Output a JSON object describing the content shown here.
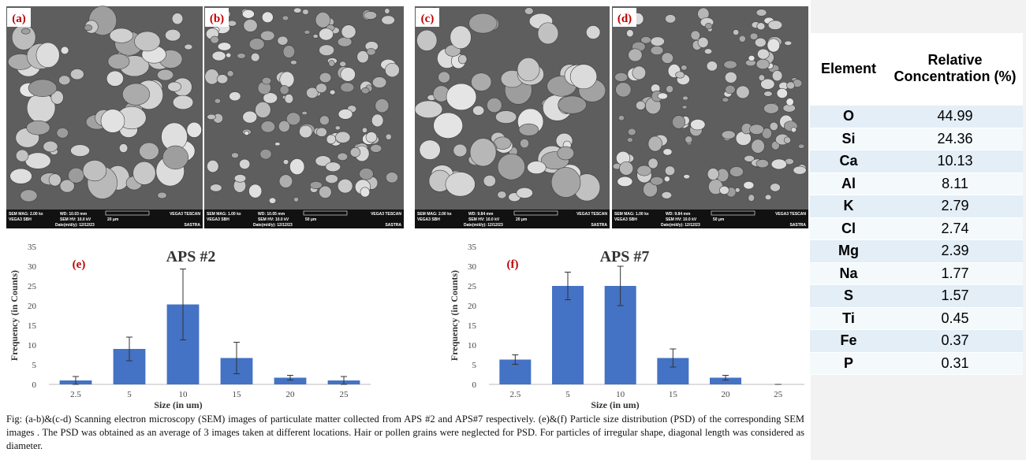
{
  "panels": [
    {
      "label": "(a)",
      "mag": "SEM MAG: 2.00 kx",
      "wd": "WD: 10.03 mm",
      "brand": "VEGA3 TESCAN",
      "model": "VEGA3 SBH",
      "hv": "SEM HV: 10.0 kV",
      "scale": "20 µm",
      "date": "Date(m/d/y): 12/12/23",
      "org": "SASTRA"
    },
    {
      "label": "(b)",
      "mag": "SEM MAG: 1.00 kx",
      "wd": "WD: 10.05 mm",
      "brand": "VEGA3 TESCAN",
      "model": "VEGA3 SBH",
      "hv": "SEM HV: 10.0 kV",
      "scale": "50 µm",
      "date": "Date(m/d/y): 12/12/23",
      "org": "SASTRA"
    },
    {
      "label": "(c)",
      "mag": "SEM MAG: 2.00 kx",
      "wd": "WD: 9.84 mm",
      "brand": "VEGA3 TESCAN",
      "model": "VEGA3 SBH",
      "hv": "SEM HV: 10.0 kV",
      "scale": "20 µm",
      "date": "Date(m/d/y): 12/12/23",
      "org": "SASTRA"
    },
    {
      "label": "(d)",
      "mag": "SEM MAG: 1.00 kx",
      "wd": "WD: 9.84 mm",
      "brand": "VEGA3 TESCAN",
      "model": "VEGA3 SBH",
      "hv": "SEM HV: 10.0 kV",
      "scale": "50 µm",
      "date": "Date(m/d/y): 12/12/23",
      "org": "SASTRA"
    }
  ],
  "chart_data": [
    {
      "type": "bar",
      "panel_label": "(e)",
      "title": "APS #2",
      "x_label": "Size (in um)",
      "y_label": "Frequency (in Counts)",
      "categories": [
        "2.5",
        "5",
        "10",
        "15",
        "20",
        "25"
      ],
      "values": [
        1,
        9,
        20.3,
        6.7,
        1.7,
        1
      ],
      "errors": [
        1,
        3,
        9,
        4,
        0.6,
        1
      ],
      "color": "#4472c4",
      "ylim": [
        0,
        35
      ],
      "yticks": [
        0,
        5,
        10,
        15,
        20,
        25,
        30,
        35
      ]
    },
    {
      "type": "bar",
      "panel_label": "(f)",
      "title": "APS #7",
      "x_label": "Size (in um)",
      "y_label": "Frequency (in Counts)",
      "categories": [
        "2.5",
        "5",
        "10",
        "15",
        "20",
        "25"
      ],
      "values": [
        6.3,
        25,
        25,
        6.7,
        1.7,
        0
      ],
      "errors": [
        1.2,
        3.5,
        5,
        2.3,
        0.6,
        0
      ],
      "color": "#4472c4",
      "ylim": [
        0,
        35
      ],
      "yticks": [
        0,
        5,
        10,
        15,
        20,
        25,
        30,
        35
      ]
    }
  ],
  "table": {
    "header": [
      "Element",
      "Relative Concentration (%)"
    ],
    "rows": [
      [
        "O",
        "44.99"
      ],
      [
        "Si",
        "24.36"
      ],
      [
        "Ca",
        "10.13"
      ],
      [
        "Al",
        "8.11"
      ],
      [
        "K",
        "2.79"
      ],
      [
        "Cl",
        "2.74"
      ],
      [
        "Mg",
        "2.39"
      ],
      [
        "Na",
        "1.77"
      ],
      [
        "S",
        "1.57"
      ],
      [
        "Ti",
        "0.45"
      ],
      [
        "Fe",
        "0.37"
      ],
      [
        "P",
        "0.31"
      ]
    ]
  },
  "caption": "Fig: (a-b)&(c-d) Scanning electron microscopy (SEM) images of particulate matter collected from APS #2 and APS#7 respectively. (e)&(f) Particle size distribution (PSD) of the corresponding SEM images . The PSD was obtained as an average of 3 images taken at different locations. Hair or pollen grains were neglected for PSD. For particles of irregular  shape, diagonal length was considered as diameter."
}
